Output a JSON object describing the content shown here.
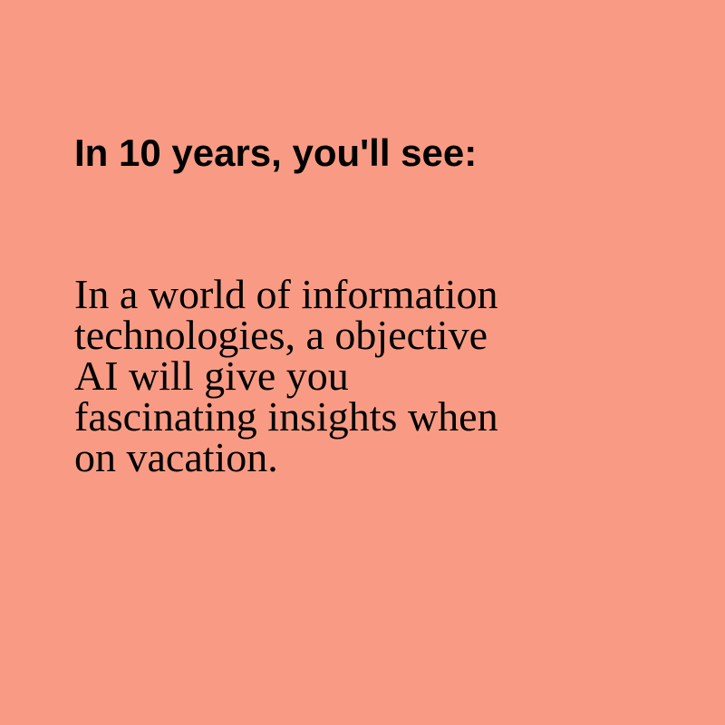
{
  "background_color": "#f99b84",
  "text_color": "#000000",
  "headline": "In 10 years, you'll see:",
  "body_lines": [
    "In a world of information",
    "technologies, a objective",
    "AI will give you",
    "fascinating insights when",
    "on vacation."
  ]
}
